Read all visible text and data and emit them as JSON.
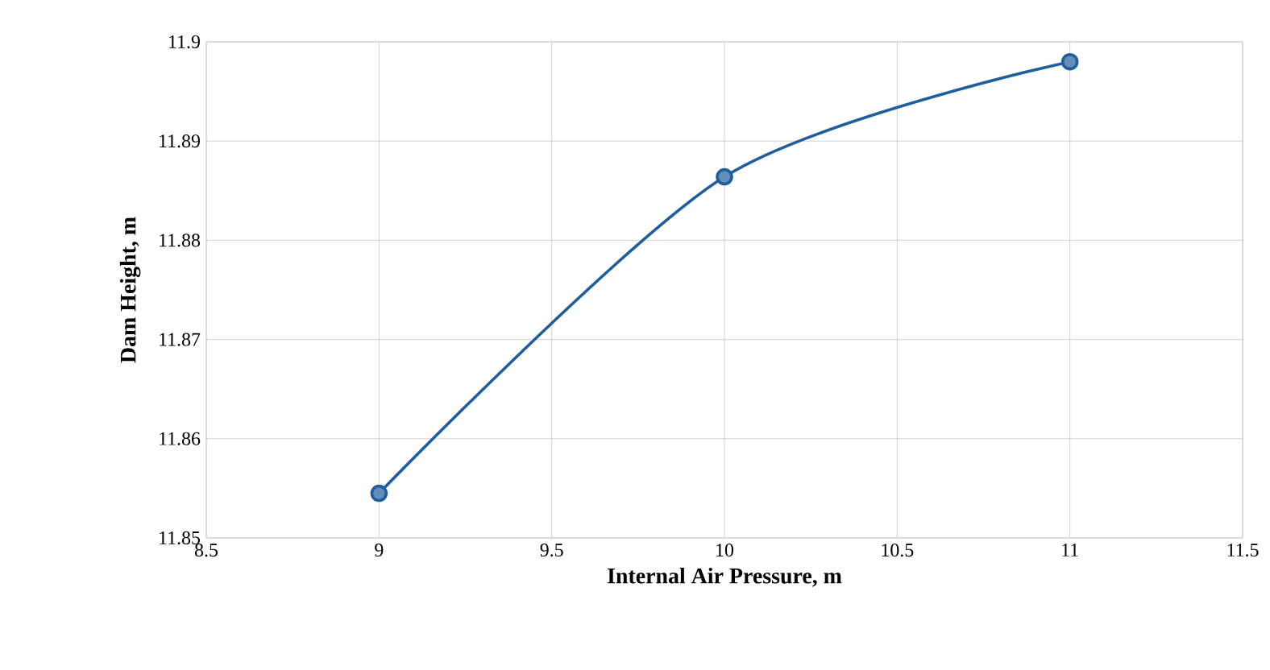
{
  "chart_data": {
    "type": "line",
    "xlabel": "Internal Air Pressure, m",
    "ylabel": "Dam Height, m",
    "x": [
      9,
      10,
      11
    ],
    "series": [
      {
        "color": "#1f5e9e",
        "values": [
          11.8545,
          11.8864,
          11.898
        ]
      }
    ],
    "xlim": [
      8.5,
      11.5
    ],
    "xticks": [
      8.5,
      9,
      9.5,
      10,
      10.5,
      11,
      11.5
    ],
    "ylim": [
      11.85,
      11.9
    ],
    "yticks": [
      11.85,
      11.86,
      11.87,
      11.88,
      11.89,
      11.9
    ],
    "grid": true,
    "marker": "circle",
    "line_style": "solid"
  }
}
